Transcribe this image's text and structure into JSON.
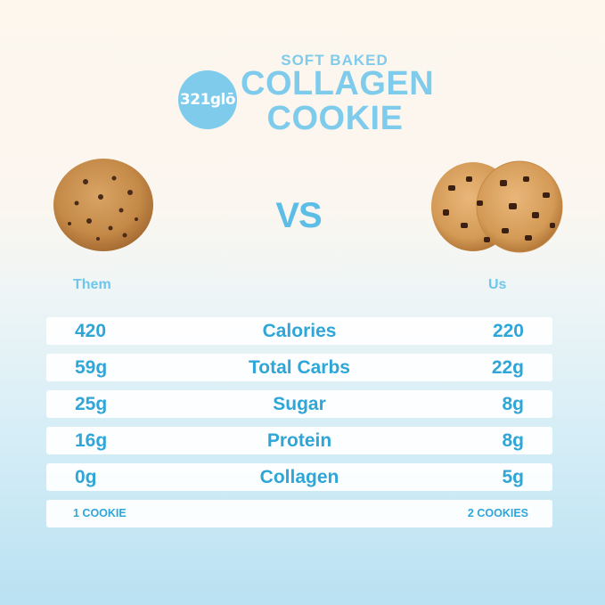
{
  "brand": {
    "logo_text": "321glō",
    "tagline": "SOFT BAKED",
    "product_line1": "COLLAGEN",
    "product_line2": "COOKIE"
  },
  "comparison": {
    "vs_label": "VS",
    "them_label": "Them",
    "us_label": "Us",
    "rows": [
      {
        "them": "420",
        "nutrient": "Calories",
        "us": "220"
      },
      {
        "them": "59g",
        "nutrient": "Total Carbs",
        "us": "22g"
      },
      {
        "them": "25g",
        "nutrient": "Sugar",
        "us": "8g"
      },
      {
        "them": "16g",
        "nutrient": "Protein",
        "us": "8g"
      },
      {
        "them": "0g",
        "nutrient": "Collagen",
        "us": "5g"
      }
    ],
    "serving": {
      "them": "1 COOKIE",
      "us": "2 COOKIES"
    }
  },
  "colors": {
    "brand_blue": "#7fcbec",
    "text_blue": "#2ea6d8",
    "cookie_base": "#c98f4f",
    "chip": "#4a2a18"
  },
  "images": {
    "left_cookie": "single-cookie-image",
    "right_cookie": "two-cookies-image"
  }
}
